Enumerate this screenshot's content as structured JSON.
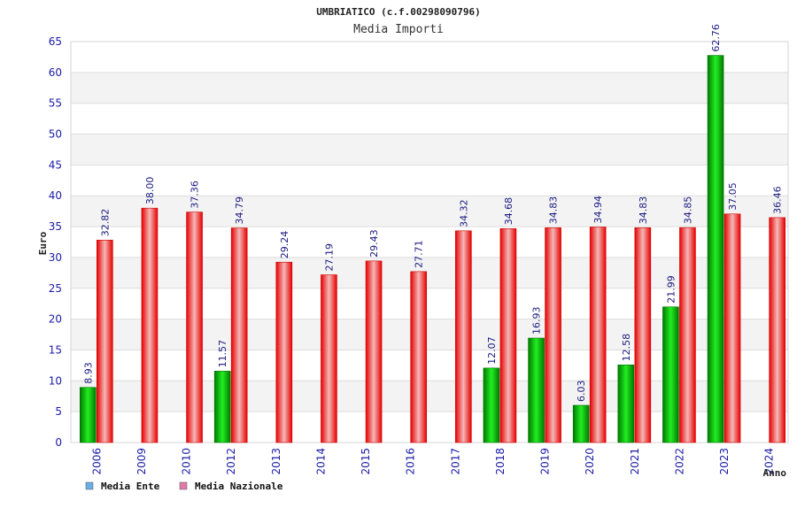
{
  "chart_data": {
    "type": "bar",
    "title": "UMBRIATICO (c.f.00298090796)",
    "subtitle": "Media Importi",
    "xlabel": "Anno",
    "ylabel": "Euro",
    "ylim": [
      0,
      65
    ],
    "yticks": [
      0,
      5,
      10,
      15,
      20,
      25,
      30,
      35,
      40,
      45,
      50,
      55,
      60,
      65
    ],
    "categories": [
      "2006",
      "2009",
      "2010",
      "2012",
      "2013",
      "2014",
      "2015",
      "2016",
      "2017",
      "2018",
      "2019",
      "2020",
      "2021",
      "2022",
      "2023",
      "2024"
    ],
    "series": [
      {
        "name": "Media Ente",
        "color": "#00cc00",
        "legend_color": "#6aaee6",
        "values": [
          8.93,
          null,
          null,
          11.57,
          null,
          null,
          null,
          null,
          null,
          12.07,
          16.93,
          6.03,
          12.58,
          21.99,
          62.76,
          null
        ],
        "labels": [
          "8.93",
          "",
          "",
          "11.57",
          "",
          "",
          "",
          "",
          "",
          "12.07",
          "16.93",
          "6.03",
          "12.58",
          "21.99",
          "62.76",
          ""
        ]
      },
      {
        "name": "Media Nazionale",
        "color": "#ee1111",
        "legend_color": "#e07aa8",
        "values": [
          32.82,
          38.0,
          37.36,
          34.79,
          29.24,
          27.19,
          29.43,
          27.71,
          34.32,
          34.68,
          34.83,
          34.94,
          34.83,
          34.85,
          37.05,
          36.46
        ],
        "labels": [
          "32.82",
          "38.00",
          "37.36",
          "34.79",
          "29.24",
          "27.19",
          "29.43",
          "27.71",
          "34.32",
          "34.68",
          "34.83",
          "34.94",
          "34.83",
          "34.85",
          "37.05",
          "36.46"
        ]
      }
    ],
    "grid": true,
    "legend_position": "bottom-left"
  }
}
